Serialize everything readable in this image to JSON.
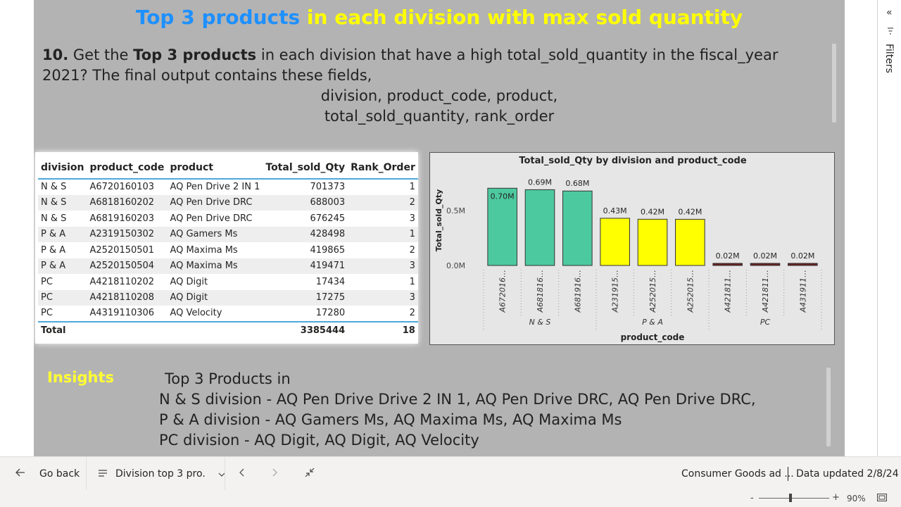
{
  "title": {
    "part1": "Top 3 products",
    "part2": "in each division with max sold quantity"
  },
  "question": {
    "number": "10.",
    "pre": "Get the",
    "bold": "Top 3 products",
    "rest": "in each division that have a high total_sold_quantity in the fiscal_year 2021? The final output contains these fields,",
    "fields_line1": "division, product_code, product,",
    "fields_line2": "total_sold_quantity, rank_order"
  },
  "table": {
    "columns": [
      "division",
      "product_code",
      "product",
      "Total_sold_Qty",
      "Rank_Order"
    ],
    "rows": [
      [
        "N & S",
        "A6720160103",
        "AQ Pen Drive 2 IN 1",
        "701373",
        "1"
      ],
      [
        "N & S",
        "A6818160202",
        "AQ Pen Drive DRC",
        "688003",
        "2"
      ],
      [
        "N & S",
        "A6819160203",
        "AQ Pen Drive DRC",
        "676245",
        "3"
      ],
      [
        "P & A",
        "A2319150302",
        "AQ Gamers Ms",
        "428498",
        "1"
      ],
      [
        "P & A",
        "A2520150501",
        "AQ Maxima Ms",
        "419865",
        "2"
      ],
      [
        "P & A",
        "A2520150504",
        "AQ Maxima Ms",
        "419471",
        "3"
      ],
      [
        "PC",
        "A4218110202",
        "AQ Digit",
        "17434",
        "1"
      ],
      [
        "PC",
        "A4218110208",
        "AQ Digit",
        "17275",
        "3"
      ],
      [
        "PC",
        "A4319110306",
        "AQ Velocity",
        "17280",
        "2"
      ]
    ],
    "total": {
      "label": "Total",
      "qty": "3385444",
      "rank": "18"
    }
  },
  "chart_data": {
    "type": "bar",
    "title": "Total_sold_Qty by division and product_code",
    "xlabel": "product_code",
    "ylabel": "Total_sold_Qty",
    "categories": [
      "A672016…",
      "A681816…",
      "A681916…",
      "A231915…",
      "A252015…",
      "A252015…",
      "A421811…",
      "A421811…",
      "A431911…"
    ],
    "groups": [
      {
        "name": "N & S",
        "start": 0,
        "end": 2
      },
      {
        "name": "P & A",
        "start": 3,
        "end": 5
      },
      {
        "name": "PC",
        "start": 6,
        "end": 8
      }
    ],
    "values": [
      701373,
      688003,
      676245,
      428498,
      419865,
      419471,
      17434,
      17275,
      17280
    ],
    "data_labels": [
      "0.70M",
      "0.69M",
      "0.68M",
      "0.43M",
      "0.42M",
      "0.42M",
      "0.02M",
      "0.02M",
      "0.02M"
    ],
    "bar_colors": [
      "#4dc9a0",
      "#4dc9a0",
      "#4dc9a0",
      "#ffff00",
      "#ffff00",
      "#ffff00",
      "#6b1f1f",
      "#6b1f1f",
      "#6b1f1f"
    ],
    "yticks": [
      {
        "value": 0,
        "label": "0.0M"
      },
      {
        "value": 500000,
        "label": "0.5M"
      }
    ],
    "ylim": [
      0,
      780000
    ],
    "grid": false
  },
  "insights": {
    "label": "Insights",
    "lines": [
      " Top 3 Products in",
      "N & S division - AQ Pen Drive Drive 2 IN 1, AQ Pen Drive DRC, AQ Pen Drive DRC,",
      "P & A division - AQ Gamers Ms, AQ Maxima Ms, AQ Maxima Ms",
      "PC division - AQ Digit, AQ Digit, AQ Velocity"
    ]
  },
  "filters": {
    "label": "Filters"
  },
  "bottom_bar": {
    "go_back": "Go back",
    "page_name": "Division top 3 pro.",
    "report_name": "Consumer Goods ad ...",
    "data_updated": "Data updated 2/8/24"
  },
  "status": {
    "zoom": "90%"
  },
  "colors": {
    "page_bg": "#b3b3b3",
    "title_blue": "#1e90ff",
    "title_yellow": "#ffff00",
    "accent": "#4fa8d8"
  }
}
